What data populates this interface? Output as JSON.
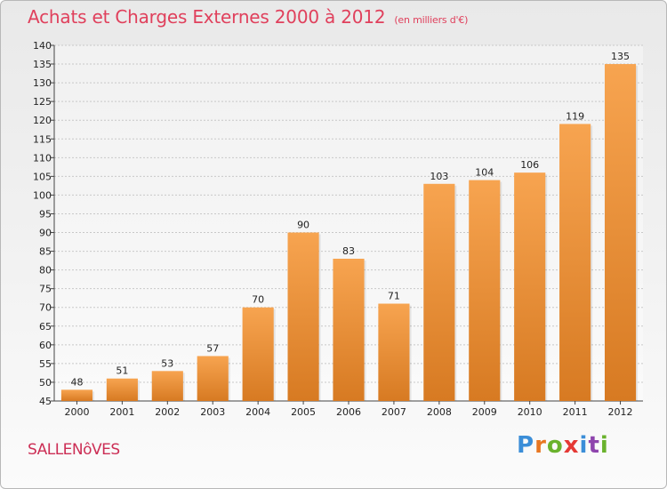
{
  "title": "Achats et Charges Externes 2000 à 2012",
  "unit": "(en milliers d'€)",
  "commune": "SALLENôVES",
  "brand": "Proxiti",
  "colors": {
    "title": "#e0405c",
    "bar_top": "#f7a450",
    "bar_bottom": "#d77a22",
    "grid": "#c8c8c8",
    "brand_letters": [
      "#3b8ed8",
      "#e87722",
      "#6ab22d",
      "#e53935",
      "#3b8ed8",
      "#8e44ad",
      "#6ab22d"
    ]
  },
  "chart_data": {
    "type": "bar",
    "categories": [
      "2000",
      "2001",
      "2002",
      "2003",
      "2004",
      "2005",
      "2006",
      "2007",
      "2008",
      "2009",
      "2010",
      "2011",
      "2012"
    ],
    "values": [
      48,
      51,
      53,
      57,
      70,
      90,
      83,
      71,
      103,
      104,
      106,
      119,
      135
    ],
    "ylim": [
      45,
      140
    ],
    "yticks": [
      45,
      50,
      55,
      60,
      65,
      70,
      75,
      80,
      85,
      90,
      95,
      100,
      105,
      110,
      115,
      120,
      125,
      130,
      135,
      140
    ],
    "grid": true,
    "data_labels": true
  }
}
